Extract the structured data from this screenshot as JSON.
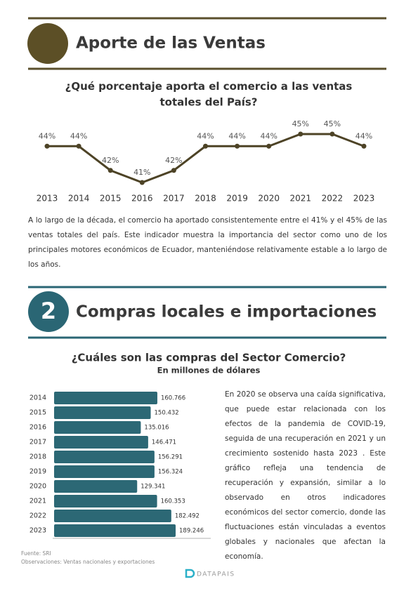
{
  "section1": {
    "title": "Aporte de las Ventas",
    "paragraph": "A lo largo de la década, el comercio ha aportado consistentemente entre el 41% y el 45% de las ventas totales del país. Este indicador muestra la importancia del sector como uno de los principales motores económicos de Ecuador, manteniéndose relativamente estable a lo largo de los años."
  },
  "chart_data": [
    {
      "type": "line",
      "title": "¿Qué porcentaje aporta el comercio a las ventas totales del País?",
      "color": "#4d4326",
      "categories": [
        "2013",
        "2014",
        "2015",
        "2016",
        "2017",
        "2018",
        "2019",
        "2020",
        "2021",
        "2022",
        "2023"
      ],
      "values": [
        44,
        44,
        42,
        41,
        42,
        44,
        44,
        44,
        45,
        45,
        44
      ],
      "value_labels": [
        "44%",
        "44%",
        "42%",
        "41%",
        "42%",
        "44%",
        "44%",
        "44%",
        "45%",
        "45%",
        "44%"
      ]
    },
    {
      "type": "barh",
      "title": "¿Cuáles son las compras del Sector Comercio?",
      "subtitle": "En millones de dólares",
      "color": "#2c6875",
      "categories": [
        "2014",
        "2015",
        "2016",
        "2017",
        "2018",
        "2019",
        "2020",
        "2021",
        "2022",
        "2023"
      ],
      "values": [
        160766,
        150432,
        135016,
        146471,
        156291,
        156324,
        129341,
        160353,
        182492,
        189246
      ],
      "value_labels": [
        "160.766",
        "150.432",
        "135.016",
        "146.471",
        "156.291",
        "156.324",
        "129.341",
        "160.353",
        "182.492",
        "189.246"
      ]
    }
  ],
  "section2": {
    "number": "2",
    "title": "Compras locales e importaciones",
    "paragraph": "En 2020 se observa una caída significativa, que puede estar relacionada con los efectos de la pandemia de COVID-19, seguida de una recuperación en 2021 y un crecimiento sostenido hasta 2023 . Este gráfico refleja una tendencia de recuperación y expansión, similar a lo observado en otros indicadores económicos del sector comercio, donde las fluctuaciones están vinculadas a eventos globales y nacionales que afectan la economía."
  },
  "footer": {
    "source": "Fuente: SRI",
    "notes": "Observaciones: Ventas nacionales y exportaciones",
    "brand": "DATAPAIS"
  }
}
